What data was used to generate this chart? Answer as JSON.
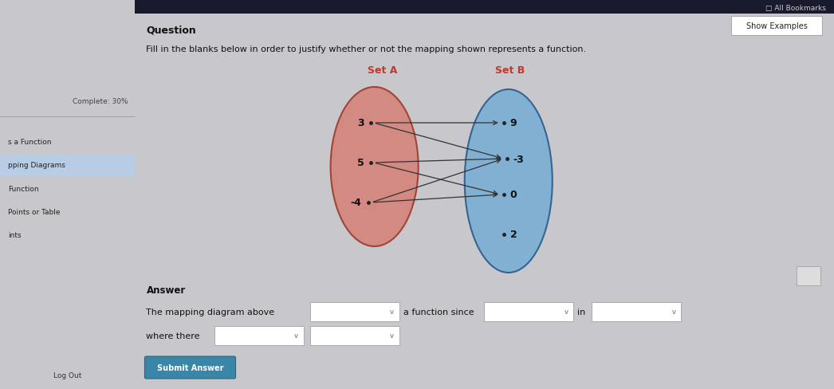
{
  "bg_color": "#c8c8cc",
  "sidebar_bg": "#b8b8bc",
  "main_bg": "#d4d4d8",
  "title_text": "Question",
  "subtitle_text": "Fill in the blanks below in order to justify whether or not the mapping shown represents a function.",
  "set_a_label": "Set A",
  "set_b_label": "Set B",
  "set_a_color": "#d4847a",
  "set_a_edge": "#9b3a2a",
  "set_b_color": "#7aaed4",
  "set_b_edge": "#2a5a8b",
  "set_a_nodes": [
    "3",
    "5",
    "-4"
  ],
  "set_b_nodes": [
    "9",
    "-3",
    "0",
    "2"
  ],
  "arrows": [
    [
      0,
      0
    ],
    [
      0,
      1
    ],
    [
      1,
      1
    ],
    [
      1,
      2
    ],
    [
      2,
      1
    ],
    [
      2,
      2
    ]
  ],
  "answer_text": "Answer",
  "answer_line1": "The mapping diagram above",
  "answer_line1b": "a function since",
  "answer_line1c": "in",
  "answer_line2": "where there",
  "complete_text": "Complete: 30%",
  "sidebar_items": [
    "s a Function",
    "pping Diagrams",
    "Function",
    "Points or Table",
    "ints"
  ],
  "sidebar_highlight": 1,
  "bookmarks_text": "□ All Bookmarks",
  "show_examples_text": "Show Examples",
  "submit_text": "Submit Answer",
  "log_out_text": "Log Out",
  "arrow_color": "#333333",
  "set_label_color": "#c0392b",
  "text_color": "#111111"
}
